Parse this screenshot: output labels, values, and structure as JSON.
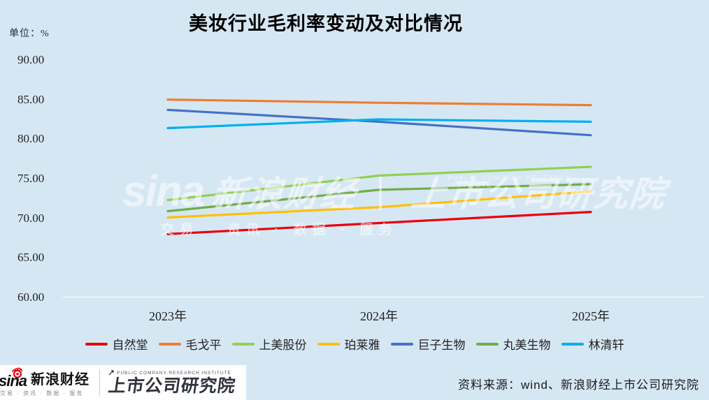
{
  "chart": {
    "title": "美妆行业毛利率变动及对比情况",
    "unit_label": "单位：%"
  },
  "chart_data": {
    "type": "line",
    "x": [
      "2023年",
      "2024年",
      "2025年"
    ],
    "series": [
      {
        "name": "自然堂",
        "color": "#e8000d",
        "values": [
          68.0,
          69.4,
          70.8
        ]
      },
      {
        "name": "毛戈平",
        "color": "#ed7d31",
        "values": [
          85.0,
          84.6,
          84.3
        ]
      },
      {
        "name": "上美股份",
        "color": "#92d050",
        "values": [
          72.3,
          75.4,
          76.5
        ]
      },
      {
        "name": "珀莱雅",
        "color": "#ffc000",
        "values": [
          70.1,
          71.4,
          73.4
        ]
      },
      {
        "name": "巨子生物",
        "color": "#4472c4",
        "values": [
          83.7,
          82.2,
          80.5
        ]
      },
      {
        "name": "丸美生物",
        "color": "#70ad47",
        "values": [
          70.9,
          73.6,
          74.3
        ]
      },
      {
        "name": "林清轩",
        "color": "#00b0f0",
        "values": [
          81.4,
          82.5,
          82.2
        ]
      }
    ],
    "ylim": [
      60,
      90
    ],
    "ytick_values": [
      90,
      85,
      80,
      75,
      70,
      65,
      60
    ],
    "ytick_labels": [
      "90.00",
      "85.00",
      "80.00",
      "75.00",
      "70.00",
      "65.00",
      "60.00"
    ],
    "grid": "baseline-only",
    "legend_position": "bottom",
    "ylabel": "单位：%",
    "title": "美妆行业毛利率变动及对比情况"
  },
  "watermark": {
    "sina": "sina",
    "brand": "新浪财经",
    "bar": "｜",
    "institute": "上市公司研究院",
    "institute_en": "PUBLIC COMPANY RESEARCH INSTITUTE",
    "tagline": "交易 · 资讯 · 数据 · 服务"
  },
  "footer": {
    "sina_word": "sina",
    "sina_brand": "新浪财经",
    "sina_tagline": "交易 · 资讯 · 数据 · 服务",
    "institute_en": "PUBLIC COMPANY RESEARCH INSTITUTE",
    "institute_cn": "上市公司研究院",
    "source": "资料来源：wind、新浪财经上市公司研究院"
  }
}
